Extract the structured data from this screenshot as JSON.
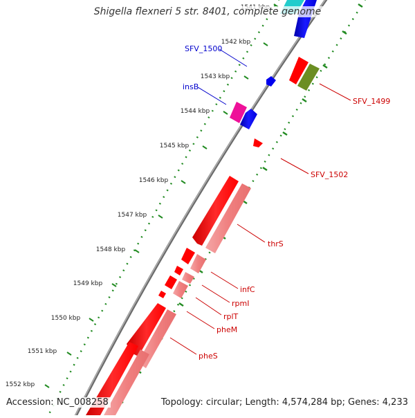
{
  "title": "Shigella flexneri 5 str. 8401, complete genome",
  "accession": "Accession: NC_008258",
  "topology": "Topology: circular; Length: 4,574,284 bp; Genes: 4,233",
  "kbp_labels": [
    "1541 kbp",
    "1542 kbp",
    "1543 kbp",
    "1544 kbp",
    "1545 kbp",
    "1546 kbp",
    "1547 kbp",
    "1548 kbp",
    "1549 kbp",
    "1550 kbp",
    "1551 kbp",
    "1552 kbp"
  ],
  "genes": [
    {
      "label": "SFV_1500",
      "strand": "forward",
      "color": "#0000cc"
    },
    {
      "label": "insB",
      "strand": "forward",
      "color": "#0000cc"
    },
    {
      "label": "SFV_1499",
      "strand": "reverse",
      "color": "#cc0000"
    },
    {
      "label": "SFV_1502",
      "strand": "reverse",
      "color": "#cc0000"
    },
    {
      "label": "thrS",
      "strand": "reverse",
      "color": "#cc0000"
    },
    {
      "label": "infC",
      "strand": "reverse",
      "color": "#cc0000"
    },
    {
      "label": "rpmI",
      "strand": "reverse",
      "color": "#cc0000"
    },
    {
      "label": "rplT",
      "strand": "reverse",
      "color": "#cc0000"
    },
    {
      "label": "pheM",
      "strand": "reverse",
      "color": "#cc0000"
    },
    {
      "label": "pheS",
      "strand": "reverse",
      "color": "#cc0000"
    }
  ],
  "colors": {
    "cds_red": "#ff0000",
    "cds_pink": "#f08080",
    "cds_blue": "#0000ee",
    "cds_cyan": "#22cccc",
    "cds_olive": "#6b8e23",
    "cds_magenta": "#ee1199",
    "backbone": "#888888",
    "gc_dots": "#228b22",
    "label_blue": "#0000cc",
    "label_red": "#cc0000"
  }
}
